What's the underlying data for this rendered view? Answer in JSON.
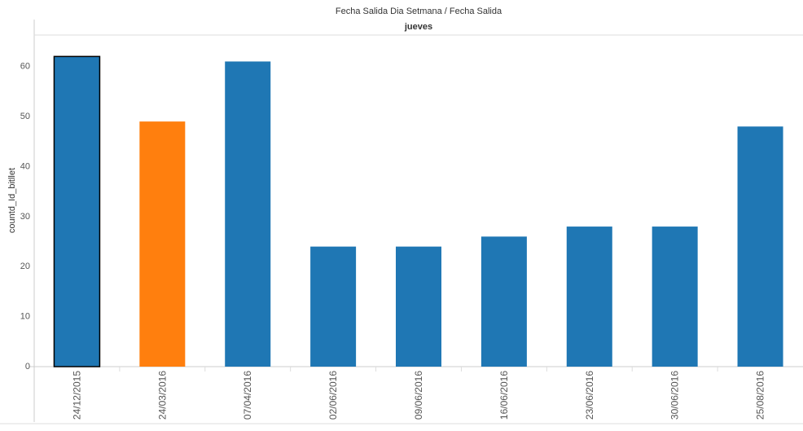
{
  "header": {
    "title": "Fecha Salida Dia Setmana  /  Fecha Salida",
    "pane_label": "jueves"
  },
  "colors": {
    "default_bar": "#1f77b4",
    "highlight_bar": "#ff7f0e",
    "selected_outline": "#000000",
    "axis_text": "#555555",
    "gridline": "#e6e6e6"
  },
  "chart_data": {
    "type": "bar",
    "title": "Fecha Salida Dia Setmana  /  Fecha Salida",
    "subtitle": "jueves",
    "xlabel": "",
    "ylabel": "countd_Id_bitllet",
    "categories": [
      "24/12/2015",
      "24/03/2016",
      "07/04/2016",
      "02/06/2016",
      "09/06/2016",
      "16/06/2016",
      "23/06/2016",
      "30/06/2016",
      "25/08/2016"
    ],
    "values": [
      62,
      49,
      61,
      24,
      24,
      26,
      28,
      28,
      48
    ],
    "yticks": [
      0,
      10,
      20,
      30,
      40,
      50,
      60
    ],
    "ylim": [
      0,
      64
    ],
    "grid": false,
    "highlighted_index": 1,
    "selected_index": 0,
    "legend": "none"
  }
}
